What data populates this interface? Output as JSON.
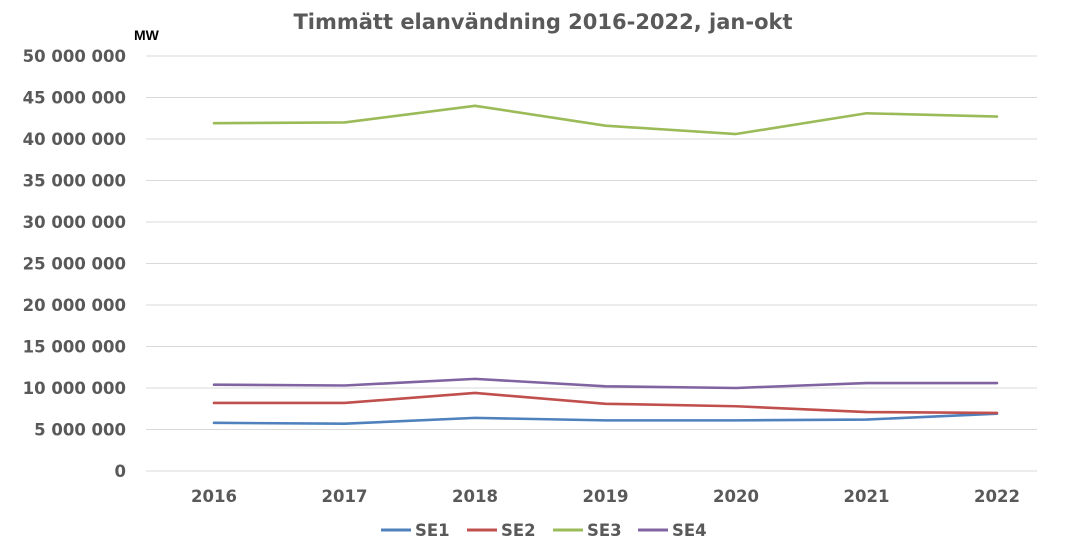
{
  "chart_data": {
    "type": "line",
    "title": "Timmätt elanvändning 2016-2022, jan-okt",
    "ylabel": "MW",
    "xlabel": "",
    "categories": [
      "2016",
      "2017",
      "2018",
      "2019",
      "2020",
      "2021",
      "2022"
    ],
    "ylim": [
      0,
      50000000
    ],
    "y_ticks": [
      0,
      5000000,
      10000000,
      15000000,
      20000000,
      25000000,
      30000000,
      35000000,
      40000000,
      45000000,
      50000000
    ],
    "y_tick_labels": [
      "0",
      "5 000 000",
      "10 000 000",
      "15 000 000",
      "20 000 000",
      "25 000 000",
      "30 000 000",
      "35 000 000",
      "40 000 000",
      "45 000 000",
      "50 000 000"
    ],
    "grid": true,
    "legend_position": "bottom",
    "series": [
      {
        "name": "SE1",
        "color": "#4f81bd",
        "values": [
          5800000,
          5700000,
          6400000,
          6100000,
          6100000,
          6200000,
          6900000
        ]
      },
      {
        "name": "SE2",
        "color": "#c0504d",
        "values": [
          8200000,
          8200000,
          9400000,
          8100000,
          7800000,
          7100000,
          7000000
        ]
      },
      {
        "name": "SE3",
        "color": "#9bbb59",
        "values": [
          41900000,
          42000000,
          44000000,
          41600000,
          40600000,
          43100000,
          42700000
        ]
      },
      {
        "name": "SE4",
        "color": "#8064a2",
        "values": [
          10400000,
          10300000,
          11100000,
          10200000,
          10000000,
          10600000,
          10600000
        ]
      }
    ]
  }
}
